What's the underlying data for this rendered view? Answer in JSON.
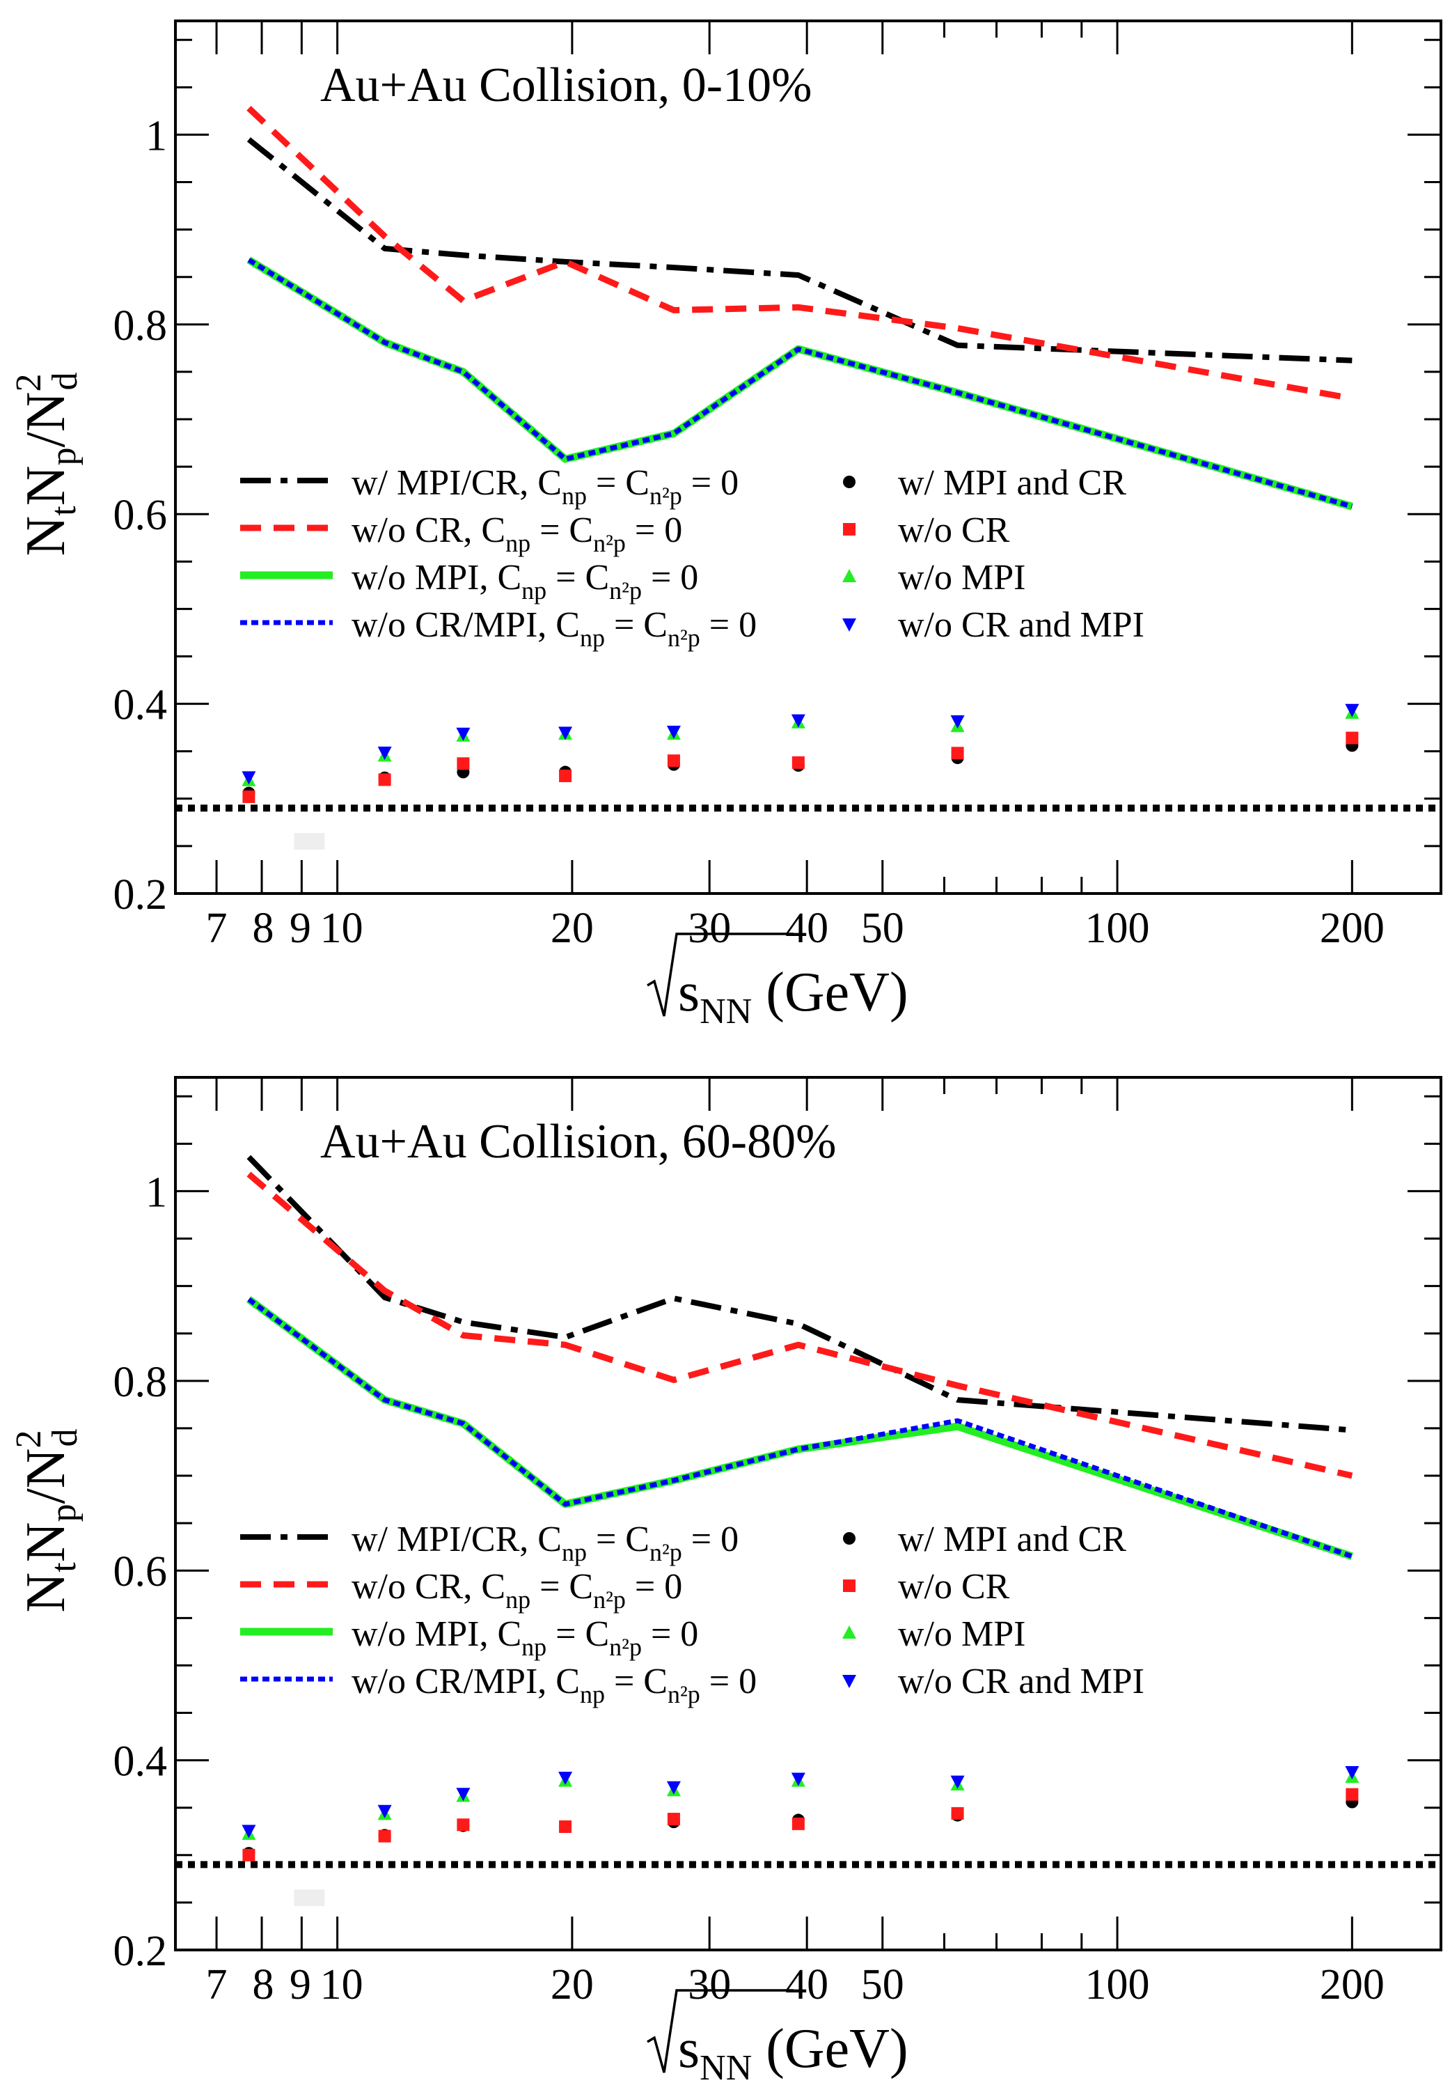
{
  "chart_data": [
    {
      "type": "line",
      "title": "Au+Au Collision, 0-10%",
      "xlabel": "√s_NN (GeV)",
      "ylabel": "N_t N_p / N_d^2",
      "x_scale": "log",
      "xlim": [
        6.2,
        260
      ],
      "ylim": [
        0.2,
        1.12
      ],
      "x_ticks": [
        7,
        8,
        9,
        10,
        20,
        30,
        40,
        50,
        100,
        200
      ],
      "x_tick_labels": [
        "7",
        "8",
        "9",
        "10",
        "20",
        "30",
        "40",
        "50",
        "100",
        "200"
      ],
      "y_ticks": [
        0.2,
        0.4,
        0.6,
        0.8,
        1.0
      ],
      "y_tick_labels": [
        "0.2",
        "0.4",
        "0.6",
        "0.8",
        "1"
      ],
      "legend_placement": "center",
      "reference_line": 0.29,
      "series": [
        {
          "name": "w/ MPI/CR, C_np = C_n2p = 0",
          "kind": "line",
          "style": "dashdot",
          "color": "#000000",
          "x": [
            7.7,
            11.5,
            14.5,
            19.6,
            27,
            39,
            62.4,
            200
          ],
          "y": [
            0.995,
            0.88,
            0.873,
            0.866,
            0.86,
            0.852,
            0.778,
            0.762
          ]
        },
        {
          "name": "w/o CR, C_np = C_n2p = 0",
          "kind": "line",
          "style": "dashed",
          "color": "#ff1a1a",
          "x": [
            7.7,
            11.5,
            14.5,
            19.6,
            27,
            39,
            62.4,
            200
          ],
          "y": [
            1.028,
            0.893,
            0.825,
            0.866,
            0.815,
            0.818,
            0.796,
            0.722
          ]
        },
        {
          "name": "w/o MPI, C_np = C_n2p = 0",
          "kind": "line",
          "style": "solid",
          "color": "#22ee22",
          "x": [
            7.7,
            11.5,
            14.5,
            19.6,
            27,
            39,
            62.4,
            200
          ],
          "y": [
            0.868,
            0.781,
            0.75,
            0.658,
            0.685,
            0.774,
            0.728,
            0.608
          ]
        },
        {
          "name": "w/o CR/MPI, C_np = C_n2p = 0",
          "kind": "line",
          "style": "dotted",
          "color": "#0000ff",
          "x": [
            7.7,
            11.5,
            14.5,
            19.6,
            27,
            39,
            62.4,
            200
          ],
          "y": [
            0.868,
            0.781,
            0.75,
            0.658,
            0.685,
            0.774,
            0.728,
            0.608
          ]
        },
        {
          "name": "w/ MPI and CR",
          "kind": "marker",
          "marker": "circle",
          "color": "#000000",
          "x": [
            7.7,
            11.5,
            14.5,
            19.6,
            27,
            39,
            62.4,
            200
          ],
          "y": [
            0.306,
            0.322,
            0.328,
            0.328,
            0.336,
            0.335,
            0.343,
            0.356
          ]
        },
        {
          "name": "w/o CR",
          "kind": "marker",
          "marker": "square",
          "color": "#ff1a1a",
          "x": [
            7.7,
            11.5,
            14.5,
            19.6,
            27,
            39,
            62.4,
            200
          ],
          "y": [
            0.302,
            0.32,
            0.337,
            0.324,
            0.34,
            0.338,
            0.348,
            0.364
          ]
        },
        {
          "name": "w/o MPI",
          "kind": "marker",
          "marker": "triangle-up",
          "color": "#22ee22",
          "x": [
            7.7,
            11.5,
            14.5,
            19.6,
            27,
            39,
            62.4,
            200
          ],
          "y": [
            0.319,
            0.345,
            0.366,
            0.368,
            0.368,
            0.38,
            0.376,
            0.39
          ]
        },
        {
          "name": "w/o CR and MPI",
          "kind": "marker",
          "marker": "triangle-down",
          "color": "#0000ff",
          "x": [
            7.7,
            11.5,
            14.5,
            19.6,
            27,
            39,
            62.4,
            200
          ],
          "y": [
            0.323,
            0.349,
            0.369,
            0.37,
            0.371,
            0.383,
            0.382,
            0.394
          ]
        }
      ]
    },
    {
      "type": "line",
      "title": "Au+Au Collision, 60-80%",
      "xlabel": "√s_NN (GeV)",
      "ylabel": "N_t N_p / N_d^2",
      "x_scale": "log",
      "xlim": [
        6.2,
        260
      ],
      "ylim": [
        0.2,
        1.12
      ],
      "x_ticks": [
        7,
        8,
        9,
        10,
        20,
        30,
        40,
        50,
        100,
        200
      ],
      "x_tick_labels": [
        "7",
        "8",
        "9",
        "10",
        "20",
        "30",
        "40",
        "50",
        "100",
        "200"
      ],
      "y_ticks": [
        0.2,
        0.4,
        0.6,
        0.8,
        1.0
      ],
      "y_tick_labels": [
        "0.2",
        "0.4",
        "0.6",
        "0.8",
        "1"
      ],
      "legend_placement": "center",
      "reference_line": 0.29,
      "series": [
        {
          "name": "w/ MPI/CR, C_np = C_n2p = 0",
          "kind": "line",
          "style": "dashdot",
          "color": "#000000",
          "x": [
            7.7,
            11.5,
            14.5,
            19.6,
            27,
            39,
            62.4,
            200
          ],
          "y": [
            1.036,
            0.888,
            0.862,
            0.846,
            0.887,
            0.86,
            0.78,
            0.748
          ]
        },
        {
          "name": "w/o CR, C_np = C_n2p = 0",
          "kind": "line",
          "style": "dashed",
          "color": "#ff1a1a",
          "x": [
            7.7,
            11.5,
            14.5,
            19.6,
            27,
            39,
            62.4,
            200
          ],
          "y": [
            1.018,
            0.895,
            0.848,
            0.838,
            0.801,
            0.838,
            0.795,
            0.7
          ]
        },
        {
          "name": "w/o MPI, C_np = C_n2p = 0",
          "kind": "line",
          "style": "solid",
          "color": "#22ee22",
          "x": [
            7.7,
            11.5,
            14.5,
            19.6,
            27,
            39,
            62.4,
            200
          ],
          "y": [
            0.886,
            0.78,
            0.755,
            0.67,
            0.695,
            0.728,
            0.752,
            0.615
          ]
        },
        {
          "name": "w/o CR/MPI, C_np = C_n2p = 0",
          "kind": "line",
          "style": "dotted",
          "color": "#0000ff",
          "x": [
            7.7,
            11.5,
            14.5,
            19.6,
            27,
            39,
            62.4,
            200
          ],
          "y": [
            0.886,
            0.78,
            0.755,
            0.67,
            0.695,
            0.728,
            0.758,
            0.615
          ]
        },
        {
          "name": "w/ MPI and CR",
          "kind": "marker",
          "marker": "circle",
          "color": "#000000",
          "x": [
            7.7,
            11.5,
            14.5,
            19.6,
            27,
            39,
            62.4,
            200
          ],
          "y": [
            0.302,
            0.321,
            0.331,
            0.33,
            0.335,
            0.337,
            0.342,
            0.356
          ]
        },
        {
          "name": "w/o CR",
          "kind": "marker",
          "marker": "square",
          "color": "#ff1a1a",
          "x": [
            7.7,
            11.5,
            14.5,
            19.6,
            27,
            39,
            62.4,
            200
          ],
          "y": [
            0.3,
            0.32,
            0.332,
            0.33,
            0.338,
            0.333,
            0.344,
            0.364
          ]
        },
        {
          "name": "w/o MPI",
          "kind": "marker",
          "marker": "triangle-up",
          "color": "#22ee22",
          "x": [
            7.7,
            11.5,
            14.5,
            19.6,
            27,
            39,
            62.4,
            200
          ],
          "y": [
            0.322,
            0.343,
            0.362,
            0.378,
            0.368,
            0.378,
            0.374,
            0.382
          ]
        },
        {
          "name": "w/o CR and MPI",
          "kind": "marker",
          "marker": "triangle-down",
          "color": "#0000ff",
          "x": [
            7.7,
            11.5,
            14.5,
            19.6,
            27,
            39,
            62.4,
            200
          ],
          "y": [
            0.326,
            0.347,
            0.365,
            0.382,
            0.372,
            0.381,
            0.378,
            0.388
          ]
        }
      ]
    }
  ],
  "legend": {
    "left": [
      {
        "pre": "w/ MPI/CR, C",
        "sub1": "np",
        "mid": " = C",
        "sub2": "n²p",
        "post": " = 0"
      },
      {
        "pre": "w/o CR, C",
        "sub1": "np",
        "mid": " = C",
        "sub2": "n²p",
        "post": " = 0"
      },
      {
        "pre": "w/o MPI, C",
        "sub1": "np",
        "mid": " = C",
        "sub2": "n²p",
        "post": " = 0"
      },
      {
        "pre": "w/o CR/MPI, C",
        "sub1": "np",
        "mid": " = C",
        "sub2": "n²p",
        "post": " = 0"
      }
    ],
    "right": [
      "w/ MPI and CR",
      "w/o CR",
      "w/o MPI",
      "w/o CR and MPI"
    ]
  },
  "axis_text": {
    "ylabel_parts": [
      "N",
      "t",
      "N",
      "p",
      "/N",
      "2",
      "d"
    ],
    "xlabel_main": "s",
    "xlabel_sub": "NN",
    "xlabel_unit": " (GeV)"
  }
}
